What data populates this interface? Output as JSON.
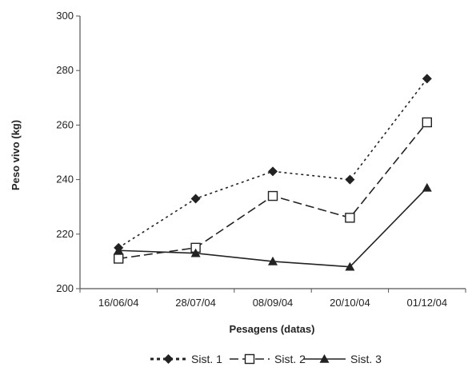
{
  "chart_data": {
    "type": "line",
    "categories": [
      "16/06/04",
      "28/07/04",
      "08/09/04",
      "20/10/04",
      "01/12/04"
    ],
    "series": [
      {
        "name": "Sist. 1",
        "values": [
          215,
          233,
          243,
          240,
          277
        ],
        "marker": "diamond",
        "dash": "dotted",
        "color": "#222222"
      },
      {
        "name": "Sist. 2",
        "values": [
          211,
          215,
          234,
          226,
          261
        ],
        "marker": "square-open",
        "dash": "dashed",
        "color": "#222222"
      },
      {
        "name": "Sist. 3",
        "values": [
          214,
          213,
          210,
          208,
          237
        ],
        "marker": "triangle",
        "dash": "solid",
        "color": "#222222"
      }
    ],
    "title": "",
    "xlabel": "Pesagens (datas)",
    "ylabel": "Peso vivo (kg)",
    "ylim": [
      200,
      300
    ],
    "yticks": [
      200,
      220,
      240,
      260,
      280,
      300
    ],
    "grid": false,
    "legend_position": "bottom"
  }
}
